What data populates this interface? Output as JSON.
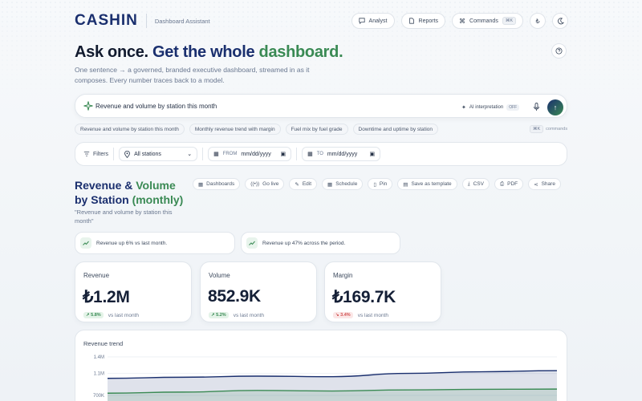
{
  "header": {
    "logo": "CASHIN",
    "subtitle": "Dashboard Assistant",
    "nav": [
      {
        "label": "Analyst",
        "icon": "chat-icon"
      },
      {
        "label": "Reports",
        "icon": "document-icon"
      },
      {
        "label": "Commands",
        "icon": "command-icon",
        "shortcut": "⌘K"
      }
    ],
    "currency_symbol": "₺",
    "theme_icon": "moon-icon"
  },
  "hero": {
    "title_a": "Ask once. ",
    "title_b": "Get the whole ",
    "title_c": "dashboard.",
    "subtitle": "One sentence → a governed, branded executive dashboard, streamed in as it composes. Every number traces back to a model."
  },
  "search": {
    "query": "Revenue and volume by station this month",
    "ai_label": "AI interpretation",
    "ai_state": "OFF"
  },
  "suggestions": [
    "Revenue and volume by station this month",
    "Monthly revenue trend with margin",
    "Fuel mix by fuel grade",
    "Downtime and uptime by station"
  ],
  "commands_hint": {
    "key": "⌘K",
    "label": "commands"
  },
  "filters": {
    "label": "Filters",
    "station": "All stations",
    "from_label": "FROM",
    "from_placeholder": "mm/dd/yyyy",
    "to_label": "TO",
    "to_placeholder": "mm/dd/yyyy"
  },
  "report": {
    "title_1": "Revenue & ",
    "title_2": "Volume",
    "title_3": "by Station ",
    "title_4": "(monthly)",
    "quote": "\"Revenue and volume by station this month\""
  },
  "toolbar": [
    "Dashboards",
    "Go live",
    "Edit",
    "Schedule",
    "Pin",
    "Save as template",
    "CSV",
    "PDF",
    "Share"
  ],
  "insights": [
    "Revenue up 6% vs last month.",
    "Revenue up 47% across the period."
  ],
  "kpis": [
    {
      "label": "Revenue",
      "value": "₺1.2M",
      "delta": "↗ 5.8%",
      "direction": "up",
      "compare": "vs last month"
    },
    {
      "label": "Volume",
      "value": "852.9K",
      "delta": "↗ 5.2%",
      "direction": "up",
      "compare": "vs last month"
    },
    {
      "label": "Margin",
      "value": "₺169.7K",
      "delta": "↘ 3.4%",
      "direction": "down",
      "compare": "vs last month"
    }
  ],
  "chart_data": {
    "type": "area",
    "title": "Revenue trend",
    "y_ticks": [
      "1.4M",
      "1.1M",
      "700K"
    ],
    "ylim": [
      700000,
      1400000
    ],
    "x": [
      0,
      1,
      2,
      3,
      4,
      5,
      6
    ],
    "series": [
      {
        "values": [
          1010000,
          1030000,
          1050000,
          1040000,
          1100000,
          1130000,
          1150000
        ],
        "color": "#1a2f6e"
      },
      {
        "values": [
          740000,
          760000,
          790000,
          780000,
          800000,
          810000,
          815000
        ],
        "color": "#3a8a54"
      }
    ]
  },
  "colors": {
    "brand": "#1a2f6e",
    "accent": "#3a8a54"
  }
}
